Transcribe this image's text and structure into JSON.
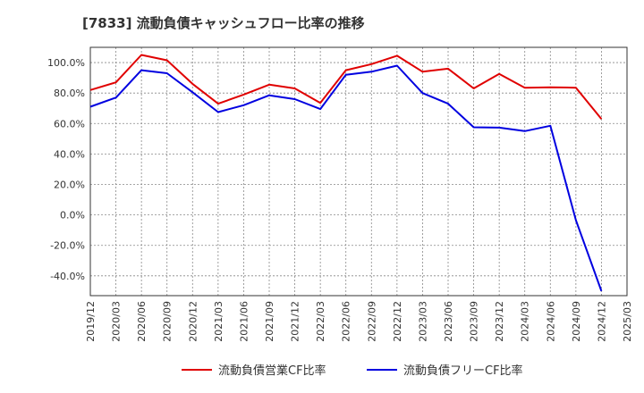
{
  "chart_data": {
    "type": "line",
    "title": "[7833]  流動負債キャッシュフロー比率の推移",
    "xlabel": "",
    "ylabel": "",
    "ylim": [
      -53,
      110
    ],
    "y_ticks": [
      100,
      80,
      60,
      40,
      20,
      0,
      -20,
      -40
    ],
    "y_tick_labels": [
      "100.0%",
      "80.0%",
      "60.0%",
      "40.0%",
      "20.0%",
      "0.0%",
      "-20.0%",
      "-40.0%"
    ],
    "x_tick_labels": [
      "2019/12",
      "2020/03",
      "2020/06",
      "2020/09",
      "2020/12",
      "2021/03",
      "2021/06",
      "2021/09",
      "2021/12",
      "2022/03",
      "2022/06",
      "2022/09",
      "2022/12",
      "2023/03",
      "2023/06",
      "2023/09",
      "2023/12",
      "2024/03",
      "2024/06",
      "2024/09",
      "2024/12",
      "2025/03"
    ],
    "grid": true,
    "legend_position": "bottom",
    "series": [
      {
        "name": "流動負債営業CF比率",
        "color": "#e00000",
        "x": [
          "2019/12",
          "2020/03",
          "2020/06",
          "2020/09",
          "2020/12",
          "2021/03",
          "2021/06",
          "2021/09",
          "2021/12",
          "2022/03",
          "2022/06",
          "2022/09",
          "2022/12",
          "2023/03",
          "2023/06",
          "2023/09",
          "2023/12",
          "2024/03",
          "2024/06",
          "2024/09",
          "2024/12"
        ],
        "values": [
          82.0,
          87.0,
          105.0,
          101.5,
          86.0,
          73.0,
          79.0,
          85.5,
          83.0,
          73.5,
          95.0,
          99.0,
          104.5,
          94.0,
          96.0,
          83.0,
          92.5,
          83.5,
          83.8,
          83.5,
          63.0
        ]
      },
      {
        "name": "流動負債フリーCF比率",
        "color": "#0000e0",
        "x": [
          "2019/12",
          "2020/03",
          "2020/06",
          "2020/09",
          "2020/12",
          "2021/03",
          "2021/06",
          "2021/09",
          "2021/12",
          "2022/03",
          "2022/06",
          "2022/09",
          "2022/12",
          "2023/03",
          "2023/06",
          "2023/09",
          "2023/12",
          "2024/03",
          "2024/06",
          "2024/09",
          "2024/12"
        ],
        "values": [
          71.0,
          77.0,
          95.0,
          93.0,
          80.5,
          67.5,
          72.0,
          78.5,
          76.0,
          69.5,
          92.0,
          94.0,
          98.0,
          80.0,
          73.0,
          57.5,
          57.3,
          55.0,
          58.5,
          -3.5,
          -50.0
        ]
      }
    ]
  }
}
